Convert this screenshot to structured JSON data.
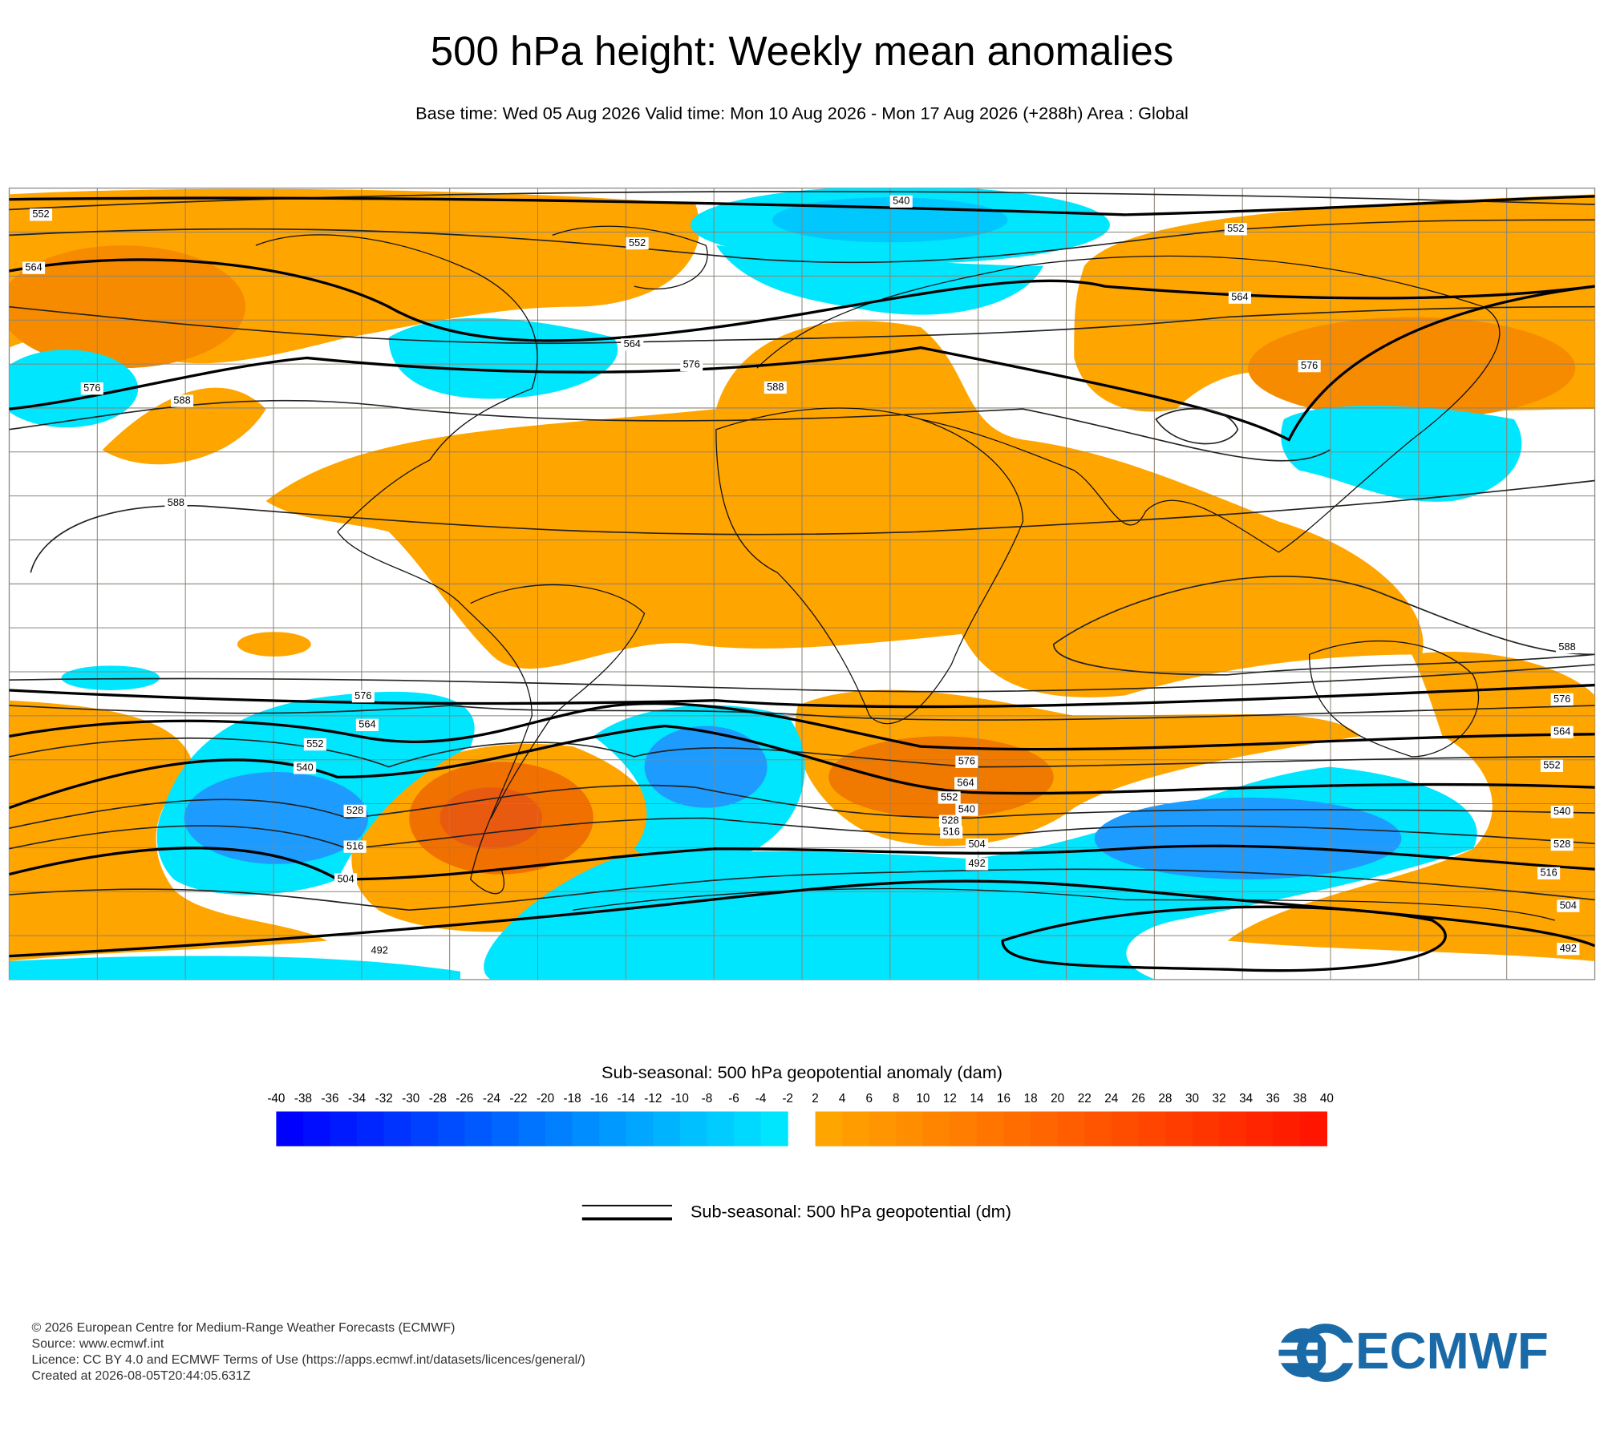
{
  "header": {
    "title": "500 hPa height: Weekly mean anomalies",
    "subtitle": "Base time: Wed 05 Aug 2026 Valid time: Mon 10 Aug 2026 - Mon 17 Aug 2026 (+288h) Area : Global"
  },
  "map": {
    "contour_labels": [
      552,
      564,
      576,
      588,
      588,
      552,
      540,
      564,
      576,
      588,
      552,
      564,
      576,
      588,
      576,
      564,
      552,
      540,
      528,
      516,
      504,
      492,
      576,
      564,
      552,
      540,
      528,
      516,
      504,
      492,
      576,
      564,
      552,
      540,
      528,
      516,
      504,
      492
    ]
  },
  "colorbar": {
    "title": "Sub-seasonal: 500 hPa geopotential anomaly (dam)",
    "ticks_negative": [
      -40,
      -38,
      -36,
      -34,
      -32,
      -30,
      -28,
      -26,
      -24,
      -22,
      -20,
      -18,
      -16,
      -14,
      -12,
      -10,
      -8,
      -6,
      -4,
      -2
    ],
    "ticks_positive": [
      2,
      4,
      6,
      8,
      10,
      12,
      14,
      16,
      18,
      20,
      22,
      24,
      26,
      28,
      30,
      32,
      34,
      36,
      38,
      40
    ],
    "negative_colors": [
      "#0000ff",
      "#00e6ff"
    ],
    "positive_colors": [
      "#ffa500",
      "#ff1500"
    ]
  },
  "line_legend": {
    "label": "Sub-seasonal: 500 hPa geopotential (dm)"
  },
  "footer": {
    "lines": [
      "© 2026 European Centre for Medium-Range Weather Forecasts (ECMWF)",
      "Source: www.ecmwf.int",
      "Licence: CC BY 4.0 and ECMWF Terms of Use (https://apps.ecmwf.int/datasets/licences/general/)",
      "Created at 2026-08-05T20:44:05.631Z"
    ],
    "logo": "ECMWF"
  }
}
